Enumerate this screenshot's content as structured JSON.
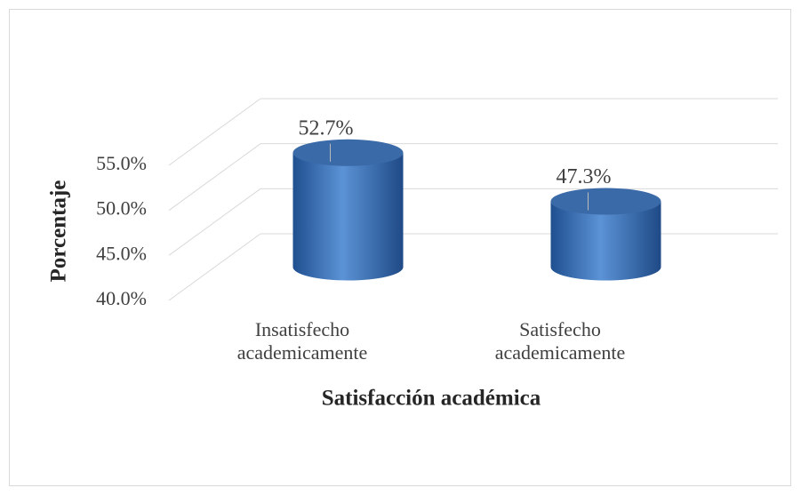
{
  "chart_data": {
    "type": "cylinder",
    "categories": [
      "Insatisfecho academicamente",
      "Satisfecho academicamente"
    ],
    "values": [
      52.7,
      47.3
    ],
    "value_labels": [
      "52.7%",
      "47.3%"
    ],
    "color": "#4a7ebb",
    "ylim": [
      40,
      55
    ],
    "yticks": [
      {
        "value": 40,
        "label": "40.0%"
      },
      {
        "value": 45,
        "label": "45.0%"
      },
      {
        "value": 50,
        "label": "50.0%"
      },
      {
        "value": 55,
        "label": "55.0%"
      }
    ],
    "ylabel": "Porcentaje",
    "xlabel": "Satisfacción académica",
    "grid": true
  }
}
